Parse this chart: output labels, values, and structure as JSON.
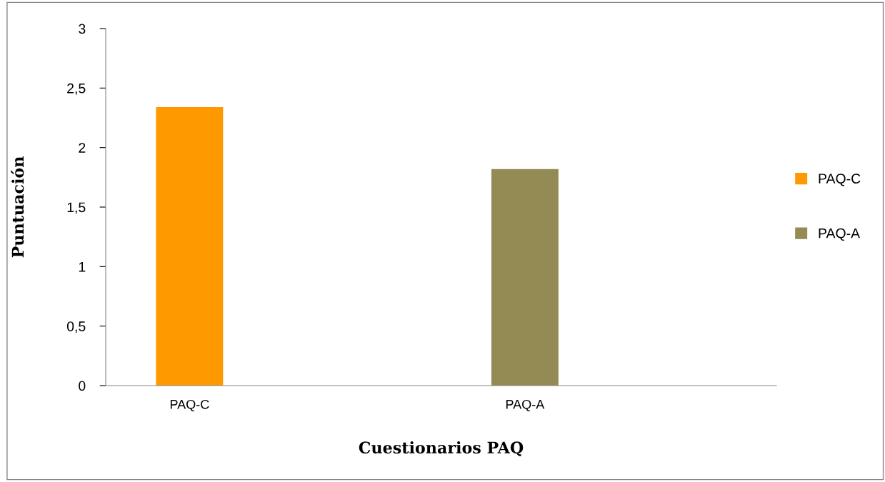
{
  "chart_data": {
    "type": "bar",
    "xlabel": "Cuestionarios PAQ",
    "ylabel": "Puntuación",
    "categories": [
      "PAQ-C",
      "PAQ-A"
    ],
    "series": [
      {
        "name": "PAQ-C",
        "color": "#ff9900",
        "values": [
          2.34,
          null
        ]
      },
      {
        "name": "PAQ-A",
        "color": "#948a54",
        "values": [
          null,
          1.82
        ]
      }
    ],
    "ylim": [
      0,
      3
    ],
    "yticks": [
      0,
      {
        "value": 0.5,
        "label": "0,5"
      },
      1,
      {
        "value": 1.5,
        "label": "1,5"
      },
      2,
      {
        "value": 2.5,
        "label": "2,5"
      },
      3
    ],
    "legend": "right",
    "grid": false
  }
}
